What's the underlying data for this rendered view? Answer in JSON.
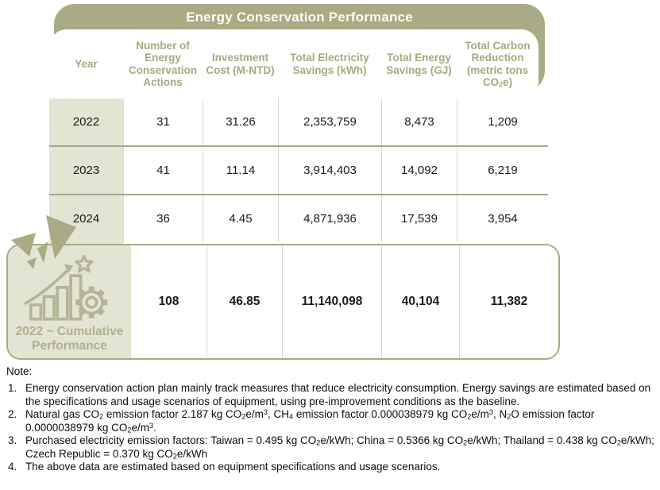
{
  "title": "Energy Conservation Performance",
  "colors": {
    "olive": "#a8ab83",
    "beige": "#e4e4d3",
    "olive-text": "#a6a980",
    "label-olive": "#afb18e",
    "line": "#a5a591",
    "vline": "#d9d9d6",
    "ink": "#1a1a1a"
  },
  "icons": {
    "cumulative_badge": "growth-chart-star-gear-icon",
    "decoration": "burst-arrow-icon"
  },
  "table": {
    "columns": [
      {
        "label": "Year"
      },
      {
        "label": "Number of Energy Conservation Actions"
      },
      {
        "label": "Investment Cost (M-NTD)"
      },
      {
        "label": "Total Electricity Savings (kWh)"
      },
      {
        "label": "Total Energy Savings (GJ)"
      },
      {
        "label": "Total Carbon Reduction (metric tons CO_{2}e)"
      }
    ],
    "rows": [
      {
        "year": "2022",
        "actions": "31",
        "investment": "31.26",
        "electricity": "2,353,759",
        "energy": "8,473",
        "carbon": "1,209"
      },
      {
        "year": "2023",
        "actions": "41",
        "investment": "11.14",
        "electricity": "3,914,403",
        "energy": "14,092",
        "carbon": "6,219"
      },
      {
        "year": "2024",
        "actions": "36",
        "investment": "4.45",
        "electricity": "4,871,936",
        "energy": "17,539",
        "carbon": "3,954"
      }
    ],
    "cumulative": {
      "label": "2022 ~ Cumulative Performance",
      "actions": "108",
      "investment": "46.85",
      "electricity": "11,140,098",
      "energy": "40,104",
      "carbon": "11,382"
    }
  },
  "notes": {
    "heading": "Note:",
    "items": [
      "Energy conservation action plan mainly track measures that reduce electricity consumption. Energy savings are estimated based on the specifications and usage scenarios of equipment, using pre-improvement conditions as the baseline.",
      "Natural gas CO_{2} emission factor 2.187 kg CO_{2}e/m^{3}, CH_{4} emission factor 0.000038979 kg CO_{2}e/m^{3}, N_{2}O emission factor 0.0000038979 kg CO_{2}e/m^{3}.",
      "Purchased electricity emission factors: Taiwan = 0.495 kg CO_{2}e/kWh; China = 0.5366 kg CO_{2}e/kWh; Thailand = 0.438 kg CO_{2}e/kWh; Czech Republic = 0.370 kg CO_{2}e/kWh",
      "The above data are estimated based on equipment specifications and usage scenarios."
    ]
  }
}
